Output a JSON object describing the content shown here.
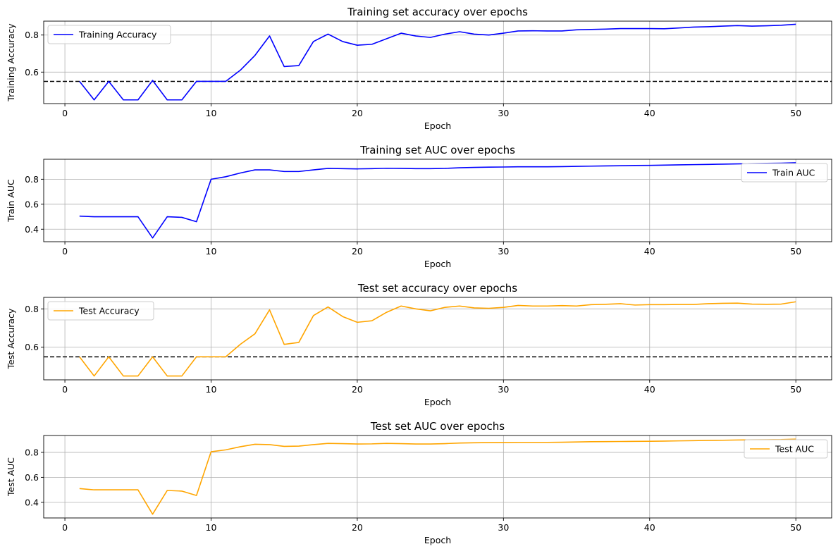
{
  "chart_data": [
    {
      "type": "line",
      "title": "Training set accuracy over epochs",
      "xlabel": "Epoch",
      "ylabel": "Training Accuracy",
      "xlim": [
        -1.45,
        52.45
      ],
      "ylim": [
        0.43,
        0.875
      ],
      "xticks": [
        0,
        10,
        20,
        30,
        40,
        50
      ],
      "yticks": [
        0.6,
        0.8
      ],
      "grid": true,
      "legend_position": "upper-left",
      "reference_line": 0.55,
      "series": [
        {
          "name": "Training Accuracy",
          "color": "#0000ff",
          "x": [
            1,
            2,
            3,
            4,
            5,
            6,
            7,
            8,
            9,
            10,
            11,
            12,
            13,
            14,
            15,
            16,
            17,
            18,
            19,
            20,
            21,
            22,
            23,
            24,
            25,
            26,
            27,
            28,
            29,
            30,
            31,
            32,
            33,
            34,
            35,
            36,
            37,
            38,
            39,
            40,
            41,
            42,
            43,
            44,
            45,
            46,
            47,
            48,
            49,
            50
          ],
          "y": [
            0.55,
            0.45,
            0.55,
            0.45,
            0.45,
            0.555,
            0.45,
            0.45,
            0.55,
            0.55,
            0.55,
            0.61,
            0.69,
            0.795,
            0.63,
            0.635,
            0.765,
            0.805,
            0.765,
            0.745,
            0.75,
            0.78,
            0.81,
            0.795,
            0.787,
            0.805,
            0.818,
            0.805,
            0.8,
            0.81,
            0.822,
            0.823,
            0.822,
            0.822,
            0.828,
            0.83,
            0.832,
            0.835,
            0.835,
            0.835,
            0.834,
            0.838,
            0.843,
            0.845,
            0.848,
            0.851,
            0.848,
            0.85,
            0.853,
            0.858
          ]
        }
      ]
    },
    {
      "type": "line",
      "title": "Training set AUC over epochs",
      "xlabel": "Epoch",
      "ylabel": "Train AUC",
      "xlim": [
        -1.45,
        52.45
      ],
      "ylim": [
        0.3,
        0.96
      ],
      "xticks": [
        0,
        10,
        20,
        30,
        40,
        50
      ],
      "yticks": [
        0.4,
        0.6,
        0.8
      ],
      "grid": true,
      "legend_position": "upper-right",
      "series": [
        {
          "name": "Train AUC",
          "color": "#0000ff",
          "x": [
            1,
            2,
            3,
            4,
            5,
            6,
            7,
            8,
            9,
            10,
            11,
            12,
            13,
            14,
            15,
            16,
            17,
            18,
            19,
            20,
            21,
            22,
            23,
            24,
            25,
            26,
            27,
            28,
            29,
            30,
            31,
            32,
            33,
            34,
            35,
            36,
            37,
            38,
            39,
            40,
            41,
            42,
            43,
            44,
            45,
            46,
            47,
            48,
            49,
            50
          ],
          "y": [
            0.505,
            0.5,
            0.5,
            0.5,
            0.5,
            0.33,
            0.5,
            0.495,
            0.46,
            0.8,
            0.82,
            0.85,
            0.875,
            0.875,
            0.862,
            0.862,
            0.875,
            0.887,
            0.885,
            0.883,
            0.885,
            0.888,
            0.887,
            0.885,
            0.885,
            0.887,
            0.892,
            0.895,
            0.897,
            0.898,
            0.9,
            0.9,
            0.9,
            0.901,
            0.903,
            0.905,
            0.907,
            0.908,
            0.91,
            0.911,
            0.913,
            0.915,
            0.917,
            0.919,
            0.921,
            0.923,
            0.925,
            0.927,
            0.929,
            0.932
          ]
        }
      ]
    },
    {
      "type": "line",
      "title": "Test set accuracy over epochs",
      "xlabel": "Epoch",
      "ylabel": "Test Accuracy",
      "xlim": [
        -1.45,
        52.45
      ],
      "ylim": [
        0.43,
        0.86
      ],
      "xticks": [
        0,
        10,
        20,
        30,
        40,
        50
      ],
      "yticks": [
        0.6,
        0.8
      ],
      "grid": true,
      "legend_position": "upper-left",
      "reference_line": 0.55,
      "series": [
        {
          "name": "Test Accuracy",
          "color": "#ffa500",
          "x": [
            1,
            2,
            3,
            4,
            5,
            6,
            7,
            8,
            9,
            10,
            11,
            12,
            13,
            14,
            15,
            16,
            17,
            18,
            19,
            20,
            21,
            22,
            23,
            24,
            25,
            26,
            27,
            28,
            29,
            30,
            31,
            32,
            33,
            34,
            35,
            36,
            37,
            38,
            39,
            40,
            41,
            42,
            43,
            44,
            45,
            46,
            47,
            48,
            49,
            50
          ],
          "y": [
            0.55,
            0.45,
            0.55,
            0.45,
            0.45,
            0.55,
            0.45,
            0.45,
            0.55,
            0.55,
            0.55,
            0.615,
            0.67,
            0.795,
            0.615,
            0.625,
            0.765,
            0.81,
            0.76,
            0.73,
            0.738,
            0.782,
            0.815,
            0.8,
            0.79,
            0.808,
            0.815,
            0.805,
            0.803,
            0.808,
            0.818,
            0.815,
            0.815,
            0.817,
            0.815,
            0.822,
            0.824,
            0.827,
            0.82,
            0.822,
            0.822,
            0.823,
            0.823,
            0.827,
            0.829,
            0.83,
            0.825,
            0.824,
            0.825,
            0.837
          ]
        }
      ]
    },
    {
      "type": "line",
      "title": "Test set AUC over epochs",
      "xlabel": "Epoch",
      "ylabel": "Test AUC",
      "xlim": [
        -1.45,
        52.45
      ],
      "ylim": [
        0.275,
        0.935
      ],
      "xticks": [
        0,
        10,
        20,
        30,
        40,
        50
      ],
      "yticks": [
        0.4,
        0.6,
        0.8
      ],
      "grid": true,
      "legend_position": "upper-right",
      "series": [
        {
          "name": "Test AUC",
          "color": "#ffa500",
          "x": [
            1,
            2,
            3,
            4,
            5,
            6,
            7,
            8,
            9,
            10,
            11,
            12,
            13,
            14,
            15,
            16,
            17,
            18,
            19,
            20,
            21,
            22,
            23,
            24,
            25,
            26,
            27,
            28,
            29,
            30,
            31,
            32,
            33,
            34,
            35,
            36,
            37,
            38,
            39,
            40,
            41,
            42,
            43,
            44,
            45,
            46,
            47,
            48,
            49,
            50
          ],
          "y": [
            0.51,
            0.5,
            0.5,
            0.5,
            0.5,
            0.305,
            0.495,
            0.49,
            0.455,
            0.805,
            0.82,
            0.845,
            0.865,
            0.862,
            0.848,
            0.85,
            0.862,
            0.872,
            0.87,
            0.867,
            0.868,
            0.872,
            0.87,
            0.867,
            0.867,
            0.87,
            0.875,
            0.877,
            0.878,
            0.879,
            0.88,
            0.88,
            0.88,
            0.881,
            0.883,
            0.885,
            0.886,
            0.887,
            0.888,
            0.889,
            0.89,
            0.892,
            0.894,
            0.896,
            0.897,
            0.899,
            0.9,
            0.901,
            0.902,
            0.906
          ]
        }
      ]
    }
  ]
}
